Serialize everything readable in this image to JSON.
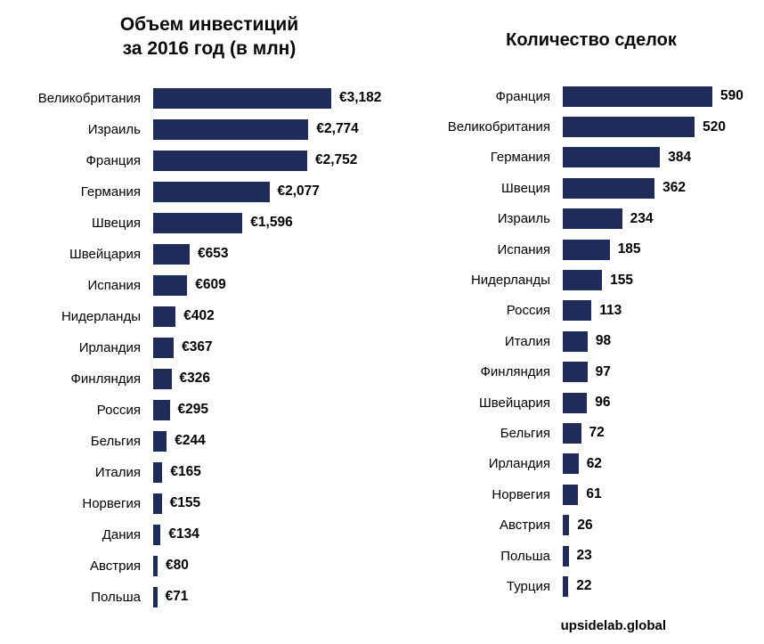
{
  "header": {
    "left_title_line1": "Объем инвестиций",
    "left_title_line2": "за 2016 год (в млн)",
    "right_title": "Количество сделок"
  },
  "colors": {
    "bar": "#1F2B58",
    "text": "#000000",
    "background": "#FFFFFF"
  },
  "watermark": "upsidelab.global",
  "chart_data": [
    {
      "type": "bar",
      "orientation": "horizontal",
      "title": "Объем инвестиций за 2016 год (в млн)",
      "categories": [
        "Великобритания",
        "Израиль",
        "Франция",
        "Германия",
        "Швеция",
        "Швейцария",
        "Испания",
        "Нидерланды",
        "Ирландия",
        "Финляндия",
        "Россия",
        "Бельгия",
        "Италия",
        "Норвегия",
        "Дания",
        "Австрия",
        "Польша"
      ],
      "values": [
        3182,
        2774,
        2752,
        2077,
        1596,
        653,
        609,
        402,
        367,
        326,
        295,
        244,
        165,
        155,
        134,
        80,
        71
      ],
      "value_labels": [
        "€3,182",
        "€2,774",
        "€2,752",
        "€2,077",
        "€1,596",
        "€653",
        "€609",
        "€402",
        "€367",
        "€326",
        "€295",
        "€244",
        "€165",
        "€155",
        "€134",
        "€80",
        "€71"
      ],
      "xlabel": "",
      "ylabel": "",
      "xlim": [
        0,
        3182
      ],
      "grid": false,
      "legend": false,
      "data_labels": true
    },
    {
      "type": "bar",
      "orientation": "horizontal",
      "title": "Количество сделок",
      "categories": [
        "Франция",
        "Великобритания",
        "Германия",
        "Швеция",
        "Израиль",
        "Испания",
        "Нидерланды",
        "Россия",
        "Италия",
        "Финляндия",
        "Швейцария",
        "Бельгия",
        "Ирландия",
        "Норвегия",
        "Австрия",
        "Польша",
        "Турция"
      ],
      "values": [
        590,
        520,
        384,
        362,
        234,
        185,
        155,
        113,
        98,
        97,
        96,
        72,
        62,
        61,
        26,
        23,
        22
      ],
      "value_labels": [
        "590",
        "520",
        "384",
        "362",
        "234",
        "185",
        "155",
        "113",
        "98",
        "97",
        "96",
        "72",
        "62",
        "61",
        "26",
        "23",
        "22"
      ],
      "xlabel": "",
      "ylabel": "",
      "xlim": [
        0,
        590
      ],
      "grid": false,
      "legend": false,
      "data_labels": true
    }
  ]
}
